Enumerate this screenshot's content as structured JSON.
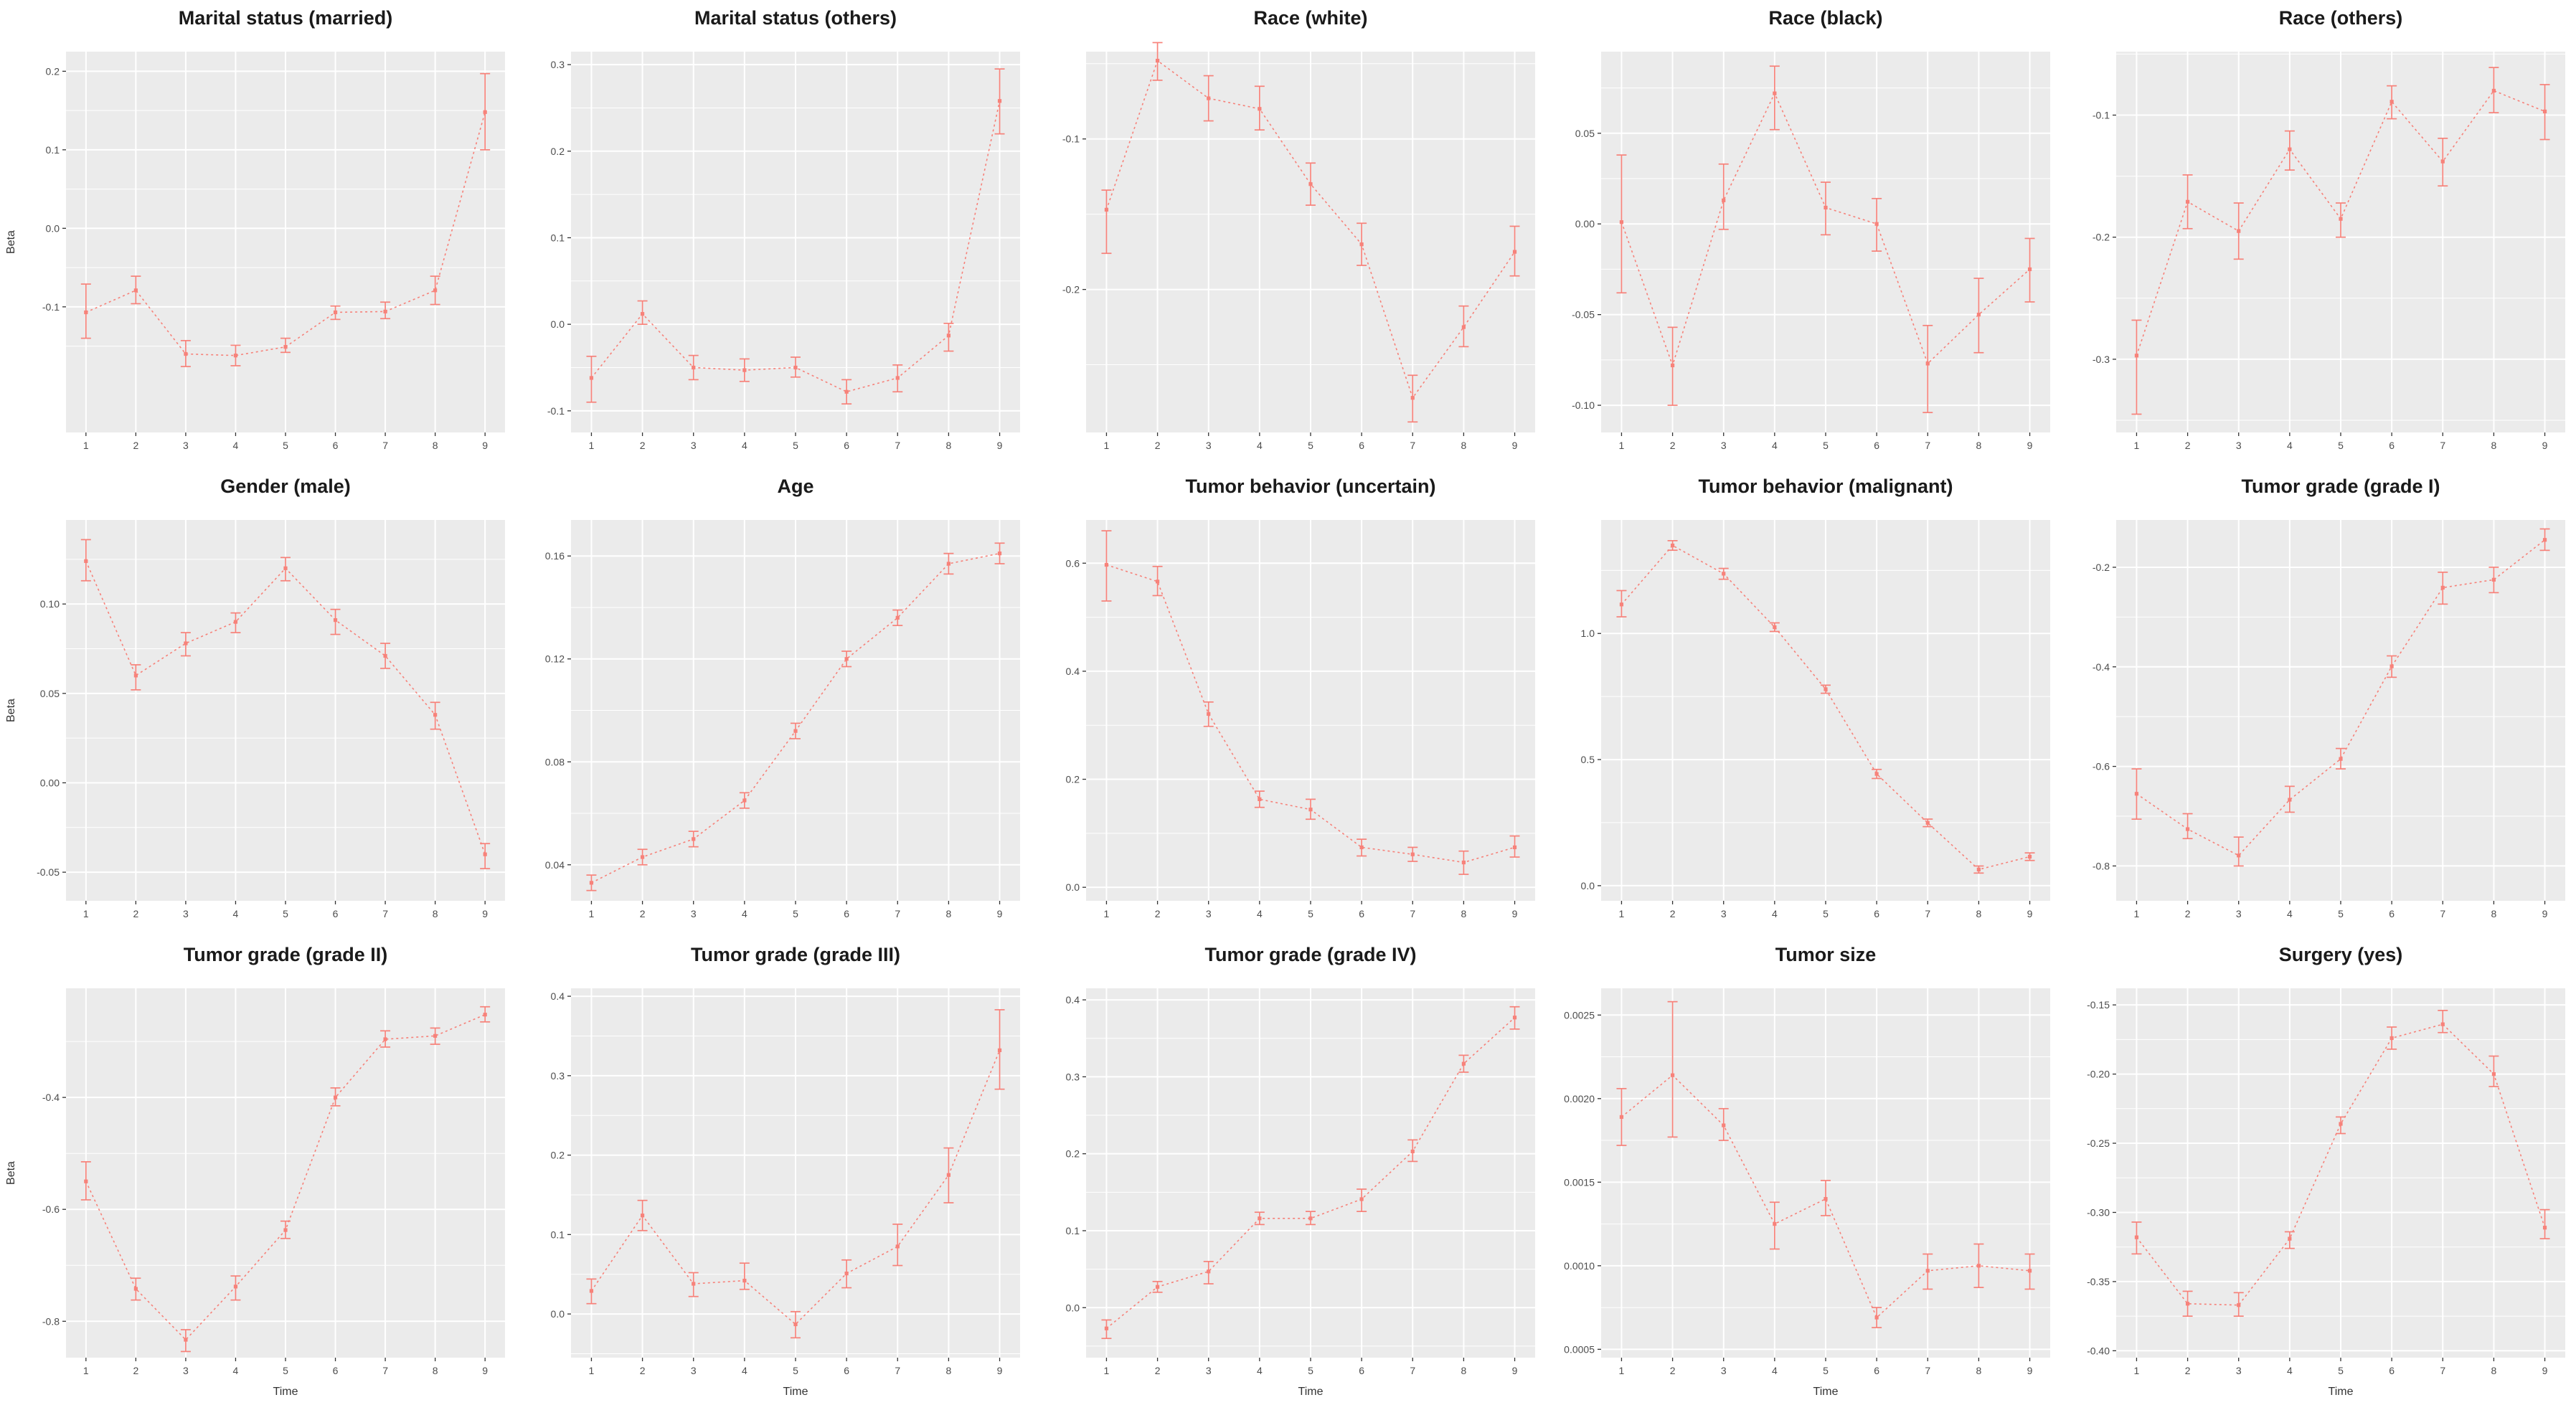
{
  "figure": {
    "layout": {
      "rows": 3,
      "cols": 5
    },
    "x_axis_title": "Time",
    "y_axis_title": "Beta",
    "x_ticks": [
      1,
      2,
      3,
      4,
      5,
      6,
      7,
      8,
      9
    ]
  },
  "colors": {
    "series": "#f8766d",
    "panel": "#ebebeb",
    "grid": "#ffffff",
    "axis_text": "#4d4d4d",
    "title": "#1a1a1a"
  },
  "chart_data": [
    {
      "type": "line",
      "title": "Marital status (married)",
      "ylabel": "Beta",
      "xlabel": null,
      "x": [
        1,
        2,
        3,
        4,
        5,
        6,
        7,
        8,
        9
      ],
      "values": [
        -0.107,
        -0.079,
        -0.16,
        -0.162,
        -0.151,
        -0.107,
        -0.106,
        -0.079,
        0.148
      ],
      "lo": [
        -0.14,
        -0.096,
        -0.176,
        -0.175,
        -0.158,
        -0.116,
        -0.115,
        -0.097,
        0.1
      ],
      "hi": [
        -0.071,
        -0.061,
        -0.143,
        -0.149,
        -0.14,
        -0.099,
        -0.094,
        -0.061,
        0.197
      ],
      "ylim": [
        -0.26,
        0.225
      ],
      "yticks": [
        0.2,
        0.1,
        0.0,
        -0.1
      ],
      "ytick_labels": [
        "0.2",
        "0.1",
        "0.0",
        "-0.1"
      ]
    },
    {
      "type": "line",
      "title": "Marital status (others)",
      "ylabel": null,
      "xlabel": null,
      "x": [
        1,
        2,
        3,
        4,
        5,
        6,
        7,
        8,
        9
      ],
      "values": [
        -0.062,
        0.012,
        -0.05,
        -0.053,
        -0.05,
        -0.078,
        -0.062,
        -0.013,
        0.258
      ],
      "lo": [
        -0.09,
        0.0,
        -0.064,
        -0.066,
        -0.061,
        -0.092,
        -0.078,
        -0.031,
        0.22
      ],
      "hi": [
        -0.037,
        0.027,
        -0.036,
        -0.04,
        -0.038,
        -0.064,
        -0.047,
        0.001,
        0.295
      ],
      "ylim": [
        -0.125,
        0.315
      ],
      "yticks": [
        0.3,
        0.2,
        0.1,
        0.0,
        -0.1
      ],
      "ytick_labels": [
        "0.3",
        "0.2",
        "0.1",
        "0.0",
        "-0.1"
      ]
    },
    {
      "type": "line",
      "title": "Race (white)",
      "ylabel": null,
      "xlabel": null,
      "x": [
        1,
        2,
        3,
        4,
        5,
        6,
        7,
        8,
        9
      ],
      "values": [
        -0.147,
        -0.048,
        -0.073,
        -0.08,
        -0.13,
        -0.17,
        -0.272,
        -0.225,
        -0.175
      ],
      "lo": [
        -0.176,
        -0.061,
        -0.088,
        -0.094,
        -0.144,
        -0.184,
        -0.288,
        -0.238,
        -0.191
      ],
      "hi": [
        -0.134,
        -0.036,
        -0.058,
        -0.065,
        -0.116,
        -0.156,
        -0.257,
        -0.211,
        -0.158
      ],
      "ylim": [
        -0.295,
        -0.042
      ],
      "yticks": [
        -0.1,
        -0.2
      ],
      "ytick_labels": [
        "-0.1",
        "-0.2"
      ]
    },
    {
      "type": "line",
      "title": "Race (black)",
      "ylabel": null,
      "xlabel": null,
      "x": [
        1,
        2,
        3,
        4,
        5,
        6,
        7,
        8,
        9
      ],
      "values": [
        0.001,
        -0.078,
        0.013,
        0.072,
        0.009,
        0.0,
        -0.077,
        -0.05,
        -0.025
      ],
      "lo": [
        -0.038,
        -0.1,
        -0.003,
        0.052,
        -0.006,
        -0.015,
        -0.104,
        -0.071,
        -0.043
      ],
      "hi": [
        0.038,
        -0.057,
        0.033,
        0.087,
        0.023,
        0.014,
        -0.056,
        -0.03,
        -0.008
      ],
      "ylim": [
        -0.115,
        0.095
      ],
      "yticks": [
        0.05,
        0.0,
        -0.05,
        -0.1
      ],
      "ytick_labels": [
        "0.05",
        "0.00",
        "-0.05",
        "-0.10"
      ]
    },
    {
      "type": "line",
      "title": "Race (others)",
      "ylabel": null,
      "xlabel": null,
      "x": [
        1,
        2,
        3,
        4,
        5,
        6,
        7,
        8,
        9
      ],
      "values": [
        -0.297,
        -0.171,
        -0.195,
        -0.128,
        -0.185,
        -0.089,
        -0.138,
        -0.08,
        -0.097
      ],
      "lo": [
        -0.345,
        -0.193,
        -0.218,
        -0.145,
        -0.2,
        -0.103,
        -0.158,
        -0.098,
        -0.12
      ],
      "hi": [
        -0.268,
        -0.149,
        -0.172,
        -0.113,
        -0.172,
        -0.076,
        -0.119,
        -0.061,
        -0.075
      ],
      "ylim": [
        -0.36,
        -0.048
      ],
      "yticks": [
        -0.1,
        -0.2,
        -0.3
      ],
      "ytick_labels": [
        "-0.1",
        "-0.2",
        "-0.3"
      ]
    },
    {
      "type": "line",
      "title": "Gender (male)",
      "ylabel": "Beta",
      "xlabel": null,
      "x": [
        1,
        2,
        3,
        4,
        5,
        6,
        7,
        8,
        9
      ],
      "values": [
        0.124,
        0.06,
        0.078,
        0.09,
        0.12,
        0.091,
        0.071,
        0.038,
        -0.04
      ],
      "lo": [
        0.113,
        0.052,
        0.071,
        0.084,
        0.113,
        0.083,
        0.064,
        0.03,
        -0.048
      ],
      "hi": [
        0.136,
        0.066,
        0.084,
        0.095,
        0.126,
        0.097,
        0.078,
        0.045,
        -0.034
      ],
      "ylim": [
        -0.066,
        0.147
      ],
      "yticks": [
        0.1,
        0.05,
        0.0,
        -0.05
      ],
      "ytick_labels": [
        "0.10",
        "0.05",
        "0.00",
        "-0.05"
      ]
    },
    {
      "type": "line",
      "title": "Age",
      "ylabel": null,
      "xlabel": null,
      "x": [
        1,
        2,
        3,
        4,
        5,
        6,
        7,
        8,
        9
      ],
      "values": [
        0.033,
        0.043,
        0.05,
        0.065,
        0.092,
        0.12,
        0.136,
        0.157,
        0.161
      ],
      "lo": [
        0.03,
        0.04,
        0.047,
        0.062,
        0.089,
        0.117,
        0.133,
        0.153,
        0.157
      ],
      "hi": [
        0.036,
        0.046,
        0.053,
        0.068,
        0.095,
        0.123,
        0.139,
        0.161,
        0.165
      ],
      "ylim": [
        0.026,
        0.174
      ],
      "yticks": [
        0.16,
        0.12,
        0.08,
        0.04
      ],
      "ytick_labels": [
        "0.16",
        "0.12",
        "0.08",
        "0.04"
      ]
    },
    {
      "type": "line",
      "title": "Tumor behavior (uncertain)",
      "ylabel": null,
      "xlabel": null,
      "x": [
        1,
        2,
        3,
        4,
        5,
        6,
        7,
        8,
        9
      ],
      "values": [
        0.597,
        0.566,
        0.321,
        0.163,
        0.144,
        0.074,
        0.061,
        0.046,
        0.074
      ],
      "lo": [
        0.53,
        0.54,
        0.298,
        0.148,
        0.126,
        0.058,
        0.048,
        0.024,
        0.056
      ],
      "hi": [
        0.66,
        0.594,
        0.343,
        0.178,
        0.163,
        0.089,
        0.074,
        0.067,
        0.095
      ],
      "ylim": [
        -0.025,
        0.68
      ],
      "yticks": [
        0.6,
        0.4,
        0.2,
        0.0
      ],
      "ytick_labels": [
        "0.6",
        "0.4",
        "0.2",
        "0.0"
      ]
    },
    {
      "type": "line",
      "title": "Tumor behavior (malignant)",
      "ylabel": null,
      "xlabel": null,
      "x": [
        1,
        2,
        3,
        4,
        5,
        6,
        7,
        8,
        9
      ],
      "values": [
        1.115,
        1.349,
        1.237,
        1.025,
        0.779,
        0.443,
        0.249,
        0.064,
        0.115
      ],
      "lo": [
        1.066,
        1.33,
        1.215,
        1.008,
        0.763,
        0.425,
        0.234,
        0.05,
        0.1
      ],
      "hi": [
        1.17,
        1.368,
        1.258,
        1.042,
        0.795,
        0.461,
        0.264,
        0.078,
        0.13
      ],
      "ylim": [
        -0.06,
        1.45
      ],
      "yticks": [
        1.0,
        0.5,
        0.0
      ],
      "ytick_labels": [
        "1.0",
        "0.5",
        "0.0"
      ]
    },
    {
      "type": "line",
      "title": "Tumor grade (grade I)",
      "ylabel": null,
      "xlabel": null,
      "x": [
        1,
        2,
        3,
        4,
        5,
        6,
        7,
        8,
        9
      ],
      "values": [
        -0.655,
        -0.726,
        -0.779,
        -0.667,
        -0.585,
        -0.399,
        -0.241,
        -0.225,
        -0.145
      ],
      "lo": [
        -0.706,
        -0.745,
        -0.8,
        -0.692,
        -0.605,
        -0.421,
        -0.274,
        -0.251,
        -0.166
      ],
      "hi": [
        -0.605,
        -0.695,
        -0.742,
        -0.64,
        -0.564,
        -0.378,
        -0.21,
        -0.2,
        -0.123
      ],
      "ylim": [
        -0.87,
        -0.105
      ],
      "yticks": [
        -0.2,
        -0.4,
        -0.6,
        -0.8
      ],
      "ytick_labels": [
        "-0.2",
        "-0.4",
        "-0.6",
        "-0.8"
      ]
    },
    {
      "type": "line",
      "title": "Tumor grade (grade II)",
      "ylabel": "Beta",
      "xlabel": "Time",
      "x": [
        1,
        2,
        3,
        4,
        5,
        6,
        7,
        8,
        9
      ],
      "values": [
        -0.55,
        -0.742,
        -0.833,
        -0.738,
        -0.637,
        -0.4,
        -0.296,
        -0.29,
        -0.252
      ],
      "lo": [
        -0.583,
        -0.762,
        -0.854,
        -0.762,
        -0.652,
        -0.415,
        -0.31,
        -0.305,
        -0.265
      ],
      "hi": [
        -0.515,
        -0.723,
        -0.815,
        -0.719,
        -0.621,
        -0.383,
        -0.281,
        -0.276,
        -0.238
      ],
      "ylim": [
        -0.865,
        -0.205
      ],
      "yticks": [
        -0.4,
        -0.6,
        -0.8
      ],
      "ytick_labels": [
        "-0.4",
        "-0.6",
        "-0.8"
      ]
    },
    {
      "type": "line",
      "title": "Tumor grade (grade III)",
      "ylabel": null,
      "xlabel": "Time",
      "x": [
        1,
        2,
        3,
        4,
        5,
        6,
        7,
        8,
        9
      ],
      "values": [
        0.029,
        0.124,
        0.038,
        0.042,
        -0.013,
        0.051,
        0.085,
        0.175,
        0.332
      ],
      "lo": [
        0.013,
        0.105,
        0.022,
        0.031,
        -0.03,
        0.033,
        0.061,
        0.14,
        0.283
      ],
      "hi": [
        0.044,
        0.143,
        0.052,
        0.064,
        0.003,
        0.068,
        0.113,
        0.209,
        0.383
      ],
      "ylim": [
        -0.055,
        0.41
      ],
      "yticks": [
        0.4,
        0.3,
        0.2,
        0.1,
        0.0
      ],
      "ytick_labels": [
        "0.4",
        "0.3",
        "0.2",
        "0.1",
        "0.0"
      ]
    },
    {
      "type": "line",
      "title": "Tumor grade (grade IV)",
      "ylabel": null,
      "xlabel": "Time",
      "x": [
        1,
        2,
        3,
        4,
        5,
        6,
        7,
        8,
        9
      ],
      "values": [
        -0.027,
        0.027,
        0.047,
        0.116,
        0.116,
        0.141,
        0.203,
        0.317,
        0.377
      ],
      "lo": [
        -0.04,
        0.02,
        0.031,
        0.108,
        0.108,
        0.125,
        0.19,
        0.306,
        0.362
      ],
      "hi": [
        -0.016,
        0.034,
        0.06,
        0.124,
        0.125,
        0.154,
        0.218,
        0.328,
        0.391
      ],
      "ylim": [
        -0.065,
        0.415
      ],
      "yticks": [
        0.4,
        0.3,
        0.2,
        0.1,
        0.0
      ],
      "ytick_labels": [
        "0.4",
        "0.3",
        "0.2",
        "0.1",
        "0.0"
      ]
    },
    {
      "type": "line",
      "title": "Tumor size",
      "ylabel": null,
      "xlabel": "Time",
      "x": [
        1,
        2,
        3,
        4,
        5,
        6,
        7,
        8,
        9
      ],
      "values": [
        0.00189,
        0.00214,
        0.00184,
        0.00125,
        0.0014,
        0.00069,
        0.00097,
        0.001,
        0.00097
      ],
      "lo": [
        0.00172,
        0.00177,
        0.00175,
        0.0011,
        0.0013,
        0.00063,
        0.00086,
        0.00087,
        0.00086
      ],
      "hi": [
        0.00206,
        0.00258,
        0.00194,
        0.00138,
        0.00151,
        0.00075,
        0.00107,
        0.00113,
        0.00107
      ],
      "ylim": [
        0.00045,
        0.00266
      ],
      "yticks": [
        0.0025,
        0.002,
        0.0015,
        0.001,
        0.0005
      ],
      "ytick_labels": [
        "0.0025",
        "0.0020",
        "0.0015",
        "0.0010",
        "0.0005"
      ]
    },
    {
      "type": "line",
      "title": "Surgery (yes)",
      "ylabel": null,
      "xlabel": "Time",
      "x": [
        1,
        2,
        3,
        4,
        5,
        6,
        7,
        8,
        9
      ],
      "values": [
        -0.318,
        -0.366,
        -0.367,
        -0.319,
        -0.236,
        -0.174,
        -0.164,
        -0.2,
        -0.311
      ],
      "lo": [
        -0.33,
        -0.375,
        -0.375,
        -0.326,
        -0.243,
        -0.182,
        -0.17,
        -0.209,
        -0.319
      ],
      "hi": [
        -0.307,
        -0.357,
        -0.358,
        -0.314,
        -0.231,
        -0.166,
        -0.154,
        -0.187,
        -0.298
      ],
      "ylim": [
        -0.405,
        -0.138
      ],
      "yticks": [
        -0.15,
        -0.2,
        -0.25,
        -0.3,
        -0.35,
        -0.4
      ],
      "ytick_labels": [
        "-0.15",
        "-0.20",
        "-0.25",
        "-0.30",
        "-0.35",
        "-0.40"
      ]
    }
  ]
}
